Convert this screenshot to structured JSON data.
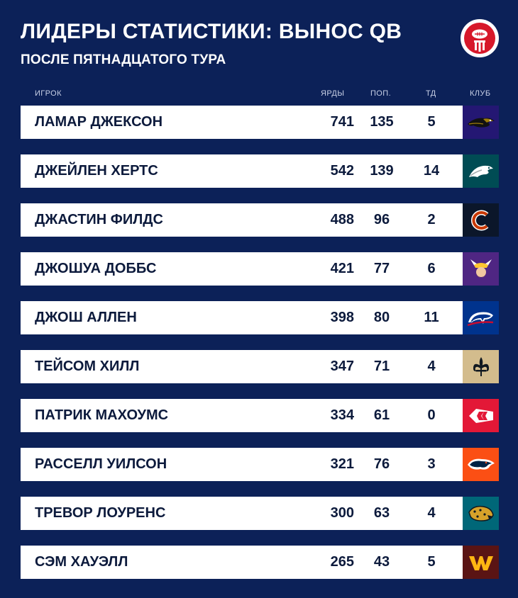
{
  "header": {
    "title": "ЛИДЕРЫ СТАТИСТИКИ: ВЫНОС QB",
    "subtitle": "ПОСЛЕ ПЯТНАДЦАТОГО ТУРА"
  },
  "columns": {
    "player": "ИГРОК",
    "yards": "ЯРДЫ",
    "attempts": "ПОП.",
    "td": "ТД",
    "club": "КЛУБ"
  },
  "rows": [
    {
      "player": "ЛАМАР ДЖЕКСОН",
      "yards": "741",
      "attempts": "135",
      "td": "5",
      "club_icon": "ravens-logo-icon",
      "club_color": "#241773"
    },
    {
      "player": "ДЖЕЙЛЕН ХЕРТС",
      "yards": "542",
      "attempts": "139",
      "td": "14",
      "club_icon": "eagles-logo-icon",
      "club_color": "#004c54"
    },
    {
      "player": "ДЖАСТИН ФИЛДС",
      "yards": "488",
      "attempts": "96",
      "td": "2",
      "club_icon": "bears-logo-icon",
      "club_color": "#0b162a"
    },
    {
      "player": "ДЖОШУА ДОББС",
      "yards": "421",
      "attempts": "77",
      "td": "6",
      "club_icon": "vikings-logo-icon",
      "club_color": "#4f2683"
    },
    {
      "player": "ДЖОШ АЛЛЕН",
      "yards": "398",
      "attempts": "80",
      "td": "11",
      "club_icon": "bills-logo-icon",
      "club_color": "#00338d"
    },
    {
      "player": "ТЕЙСОМ ХИЛЛ",
      "yards": "347",
      "attempts": "71",
      "td": "4",
      "club_icon": "saints-logo-icon",
      "club_color": "#d3bc8d"
    },
    {
      "player": "ПАТРИК МАХОУМС",
      "yards": "334",
      "attempts": "61",
      "td": "0",
      "club_icon": "chiefs-logo-icon",
      "club_color": "#e31837"
    },
    {
      "player": "РАССЕЛЛ УИЛСОН",
      "yards": "321",
      "attempts": "76",
      "td": "3",
      "club_icon": "broncos-logo-icon",
      "club_color": "#fb4f14"
    },
    {
      "player": "ТРЕВОР ЛОУРЕНС",
      "yards": "300",
      "attempts": "63",
      "td": "4",
      "club_icon": "jaguars-logo-icon",
      "club_color": "#006778"
    },
    {
      "player": "СЭМ ХАУЭЛЛ",
      "yards": "265",
      "attempts": "43",
      "td": "5",
      "club_icon": "commanders-logo-icon",
      "club_color": "#5a1414"
    }
  ],
  "colors": {
    "background": "#0c2158",
    "row_background": "#ffffff",
    "row_text": "#0c1a3c",
    "accent_logo": "#d7182a"
  }
}
